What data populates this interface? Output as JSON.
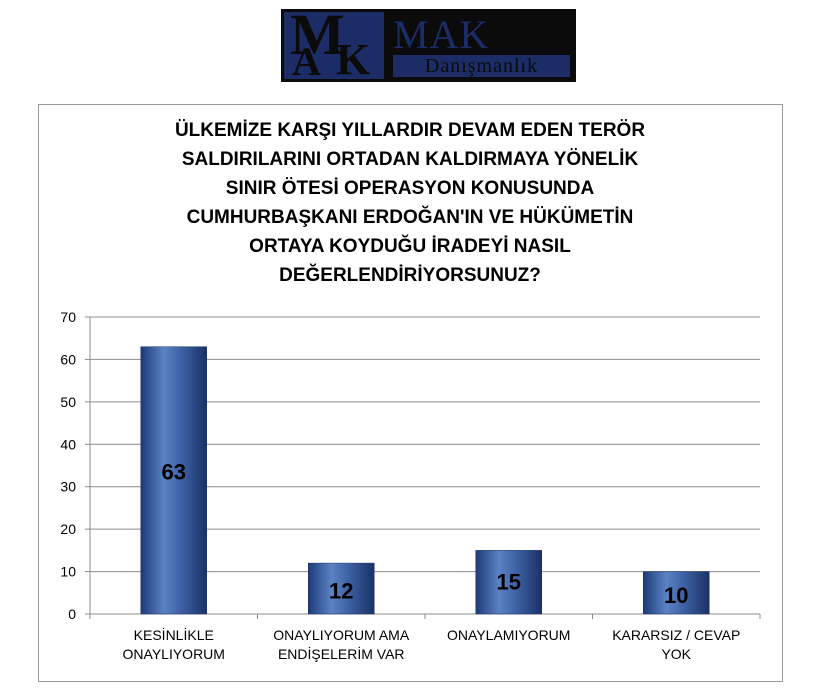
{
  "logo": {
    "monogram_m": "M",
    "monogram_a": "A",
    "monogram_k": "K",
    "name": "MAK",
    "subtitle": "Danışmanlık"
  },
  "chart_data": {
    "type": "bar",
    "title_lines": [
      "ÜLKEMİZE KARŞI YILLARDIR DEVAM EDEN TERÖR",
      "SALDIRILARINI ORTADAN KALDIRMAYA YÖNELİK",
      "SINIR ÖTESİ OPERASYON KONUSUNDA",
      "CUMHURBAŞKANI ERDOĞAN'IN VE HÜKÜMETİN",
      "ORTAYA KOYDUĞU İRADEYİ NASIL",
      "DEĞERLENDİRİYORSUNUZ?"
    ],
    "categories": [
      [
        "KESİNLİKLE",
        "ONAYLIYORUM"
      ],
      [
        "ONAYLIYORUM AMA",
        "ENDİŞELERİM VAR"
      ],
      [
        "ONAYLAMIYORUM"
      ],
      [
        "KARARSIZ / CEVAP",
        "YOK"
      ]
    ],
    "values": [
      63,
      12,
      15,
      10
    ],
    "data_labels": [
      "63",
      "12",
      "15",
      "10"
    ],
    "ylim": [
      0,
      70
    ],
    "yticks": [
      0,
      10,
      20,
      30,
      40,
      50,
      60,
      70
    ],
    "grid": true,
    "legend": "none",
    "bar_color": "#3d5fa0"
  }
}
